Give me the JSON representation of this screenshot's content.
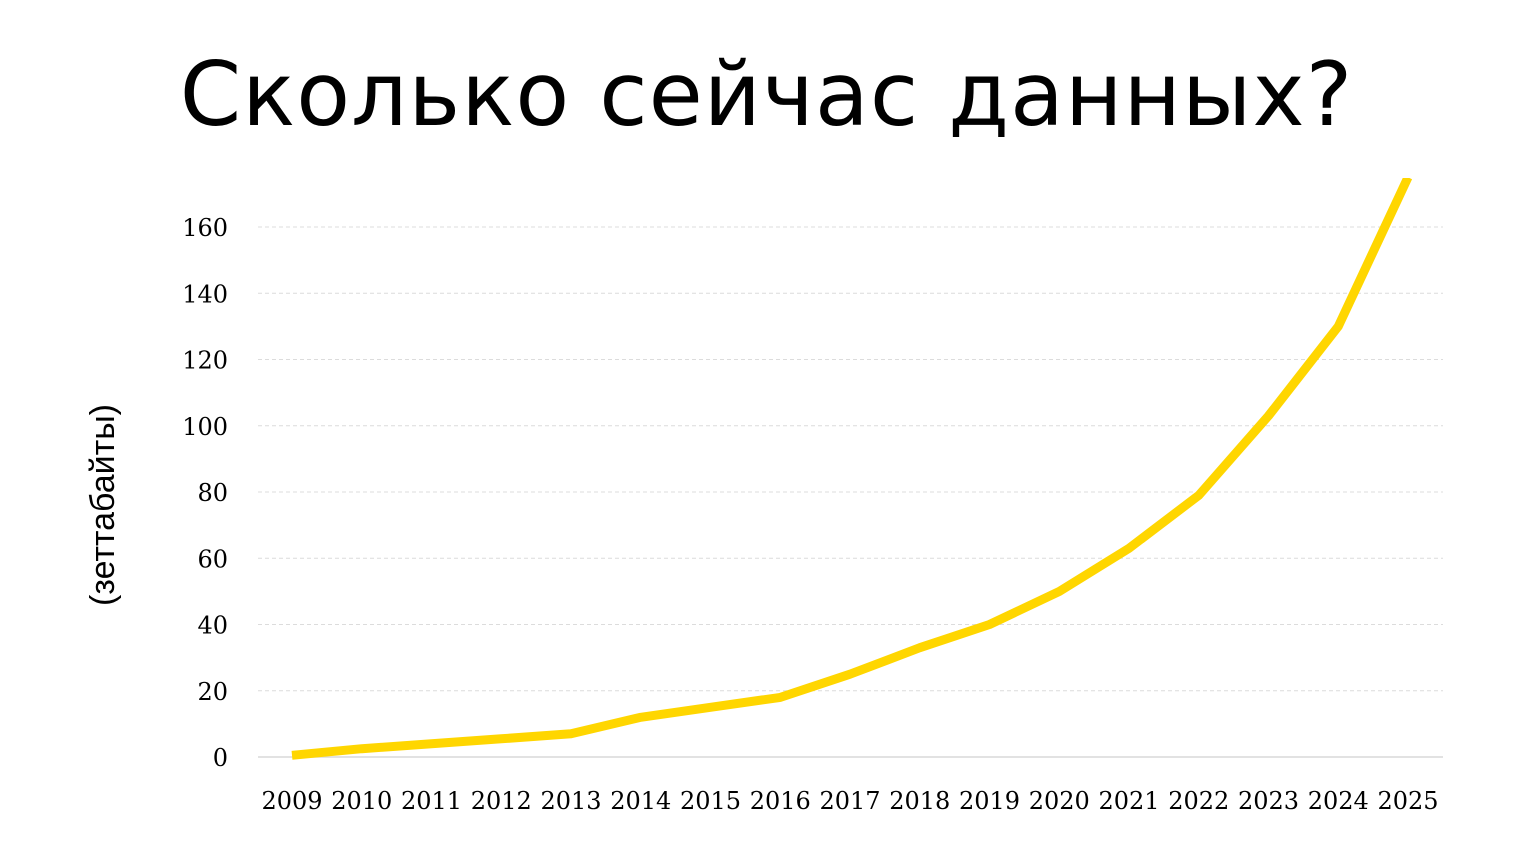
{
  "title": "Сколько сейчас данных?",
  "chart_data": {
    "type": "line",
    "x": [
      "2009",
      "2010",
      "2011",
      "2012",
      "2013",
      "2014",
      "2015",
      "2016",
      "2017",
      "2018",
      "2019",
      "2020",
      "2021",
      "2022",
      "2023",
      "2024",
      "2025"
    ],
    "series": [
      {
        "values": [
          0.5,
          2.5,
          4,
          5.5,
          7,
          12,
          15,
          18,
          25,
          33,
          40,
          50,
          63,
          79,
          103,
          130,
          175
        ],
        "color": "#FFD600"
      }
    ],
    "ylabel": "(зеттабайты)",
    "xlabel": "",
    "ylim": [
      0,
      160
    ],
    "yticks": [
      "0",
      "20",
      "40",
      "60",
      "80",
      "100",
      "120",
      "140",
      "160"
    ],
    "grid": true,
    "legend": "none"
  }
}
